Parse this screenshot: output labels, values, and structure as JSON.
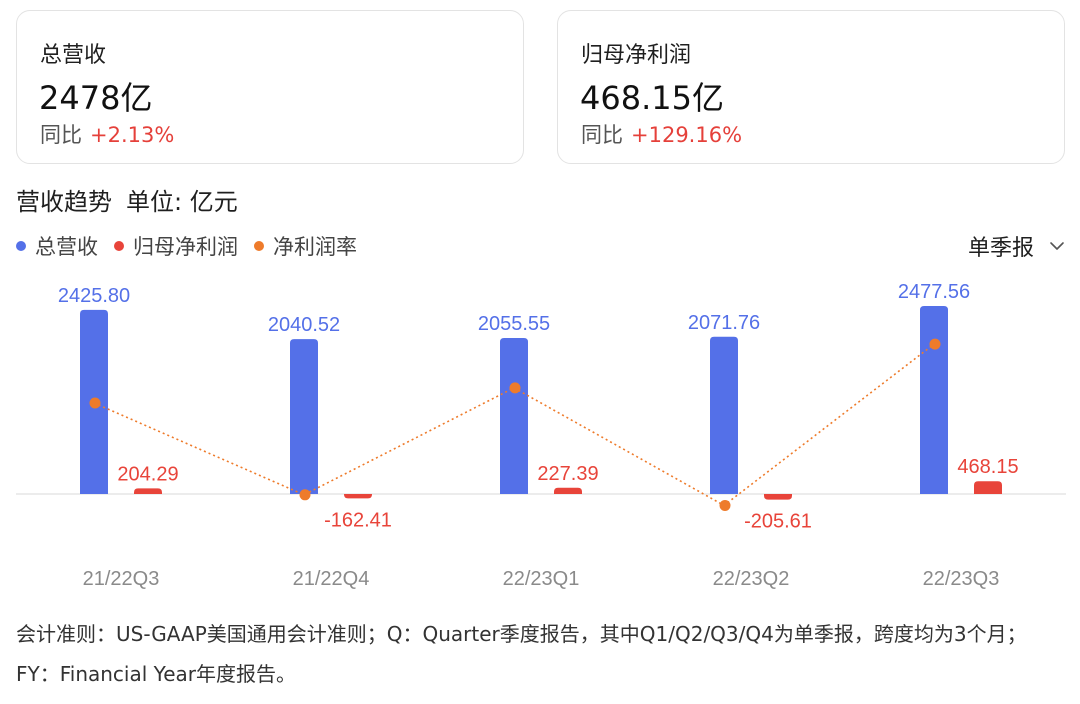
{
  "cards": {
    "revenue": {
      "label": "总营收",
      "value": "2478亿",
      "yoy_label": "同比",
      "yoy_value": "+2.13%"
    },
    "profit": {
      "label": "归母净利润",
      "value": "468.15亿",
      "yoy_label": "同比",
      "yoy_value": "+129.16%"
    }
  },
  "section": {
    "title": "营收趋势",
    "unit": "单位: 亿元"
  },
  "period_select": {
    "selected": "单季报",
    "icon": "chevron-down-icon"
  },
  "colors": {
    "revenue": "#5470e8",
    "profit": "#e8443a",
    "margin": "#ee7b2b",
    "axis_label": "#8a8a8a"
  },
  "chart_data": {
    "type": "bar",
    "categories": [
      "21/22Q3",
      "21/22Q4",
      "22/23Q1",
      "22/23Q2",
      "22/23Q3"
    ],
    "series": [
      {
        "name": "总营收",
        "type": "bar",
        "values": [
          2425.8,
          2040.52,
          2055.55,
          2071.76,
          2477.56
        ],
        "labels": [
          "2425.80",
          "2040.52",
          "2055.55",
          "2071.76",
          "2477.56"
        ]
      },
      {
        "name": "归母净利润",
        "type": "bar",
        "values": [
          204.29,
          -162.41,
          227.39,
          -205.61,
          468.15
        ],
        "labels": [
          "204.29",
          "-162.41",
          "227.39",
          "-205.61",
          "468.15"
        ]
      },
      {
        "name": "净利润率",
        "type": "line",
        "values": [
          8.4,
          -8.0,
          11.1,
          -9.9,
          18.9
        ]
      }
    ],
    "legend": [
      "总营收",
      "归母净利润",
      "净利润率"
    ],
    "legend_position": "top-left"
  },
  "footnote": "会计准则：US-GAAP美国通用会计准则；Q：Quarter季度报告，其中Q1/Q2/Q3/Q4为单季报，跨度均为3个月；FY：Financial Year年度报告。"
}
